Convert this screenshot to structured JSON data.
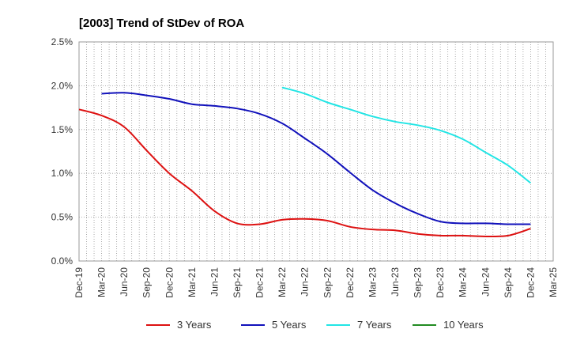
{
  "chart_data": {
    "type": "line",
    "title": "[2003]  Trend of StDev of ROA",
    "xlabel": "",
    "ylabel": "",
    "x": [
      "Dec-19",
      "Mar-20",
      "Jun-20",
      "Sep-20",
      "Dec-20",
      "Mar-21",
      "Jun-21",
      "Sep-21",
      "Dec-21",
      "Mar-22",
      "Jun-22",
      "Sep-22",
      "Dec-22",
      "Mar-23",
      "Jun-23",
      "Sep-23",
      "Dec-23",
      "Mar-24",
      "Jun-24",
      "Sep-24",
      "Dec-24",
      "Mar-25"
    ],
    "ylim": [
      0,
      2.5
    ],
    "yticks": [
      "0.0%",
      "0.5%",
      "1.0%",
      "1.5%",
      "2.0%",
      "2.5%"
    ],
    "grid": true,
    "legend_position": "bottom",
    "series": [
      {
        "name": "3 Years",
        "color": "#dd1111",
        "values": [
          1.73,
          1.66,
          1.53,
          1.26,
          1.0,
          0.8,
          0.57,
          0.43,
          0.42,
          0.47,
          0.48,
          0.46,
          0.39,
          0.36,
          0.35,
          0.31,
          0.29,
          0.29,
          0.28,
          0.29,
          0.37,
          null
        ]
      },
      {
        "name": "5 Years",
        "color": "#1111bb",
        "values": [
          null,
          1.91,
          1.92,
          1.89,
          1.85,
          1.79,
          1.77,
          1.74,
          1.68,
          1.57,
          1.4,
          1.22,
          1.01,
          0.81,
          0.66,
          0.54,
          0.45,
          0.43,
          0.43,
          0.42,
          0.42,
          null
        ]
      },
      {
        "name": "7 Years",
        "color": "#22e5e5",
        "values": [
          null,
          null,
          null,
          null,
          null,
          null,
          null,
          null,
          null,
          1.98,
          1.91,
          1.81,
          1.73,
          1.65,
          1.59,
          1.55,
          1.49,
          1.39,
          1.24,
          1.09,
          0.89,
          null
        ]
      },
      {
        "name": "10 Years",
        "color": "#228b22",
        "values": [
          null,
          null,
          null,
          null,
          null,
          null,
          null,
          null,
          null,
          null,
          null,
          null,
          null,
          null,
          null,
          null,
          null,
          null,
          null,
          null,
          null,
          null
        ]
      }
    ]
  }
}
